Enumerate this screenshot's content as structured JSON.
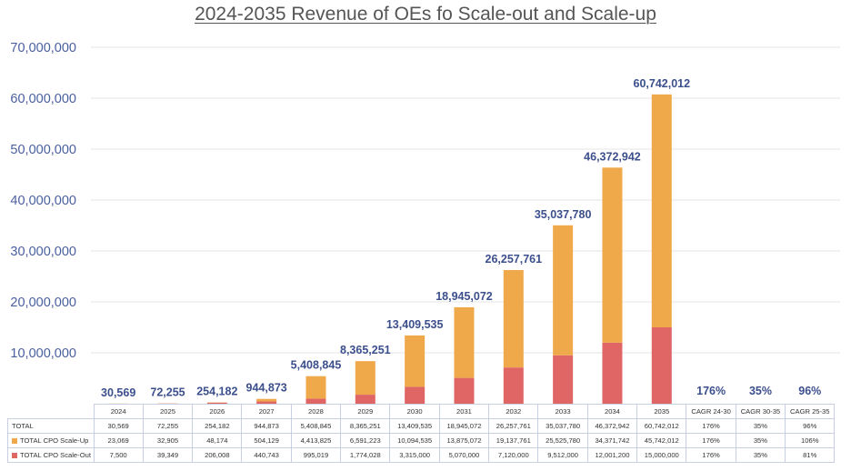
{
  "chart_data": {
    "type": "bar",
    "stacked": true,
    "title": "2024-2035 Revenue of OEs fo Scale-out and Scale-up",
    "categories": [
      "2024",
      "2025",
      "2026",
      "2027",
      "2028",
      "2029",
      "2030",
      "2031",
      "2032",
      "2033",
      "2034",
      "2035"
    ],
    "extra_columns": [
      "CAGR 24-30",
      "CAGR 30-35",
      "CAGR 25-35"
    ],
    "ylim": [
      0,
      70000000
    ],
    "yticks": [
      "-",
      "10,000,000",
      "20,000,000",
      "30,000,000",
      "40,000,000",
      "50,000,000",
      "60,000,000",
      "70,000,000"
    ],
    "grid": true,
    "series": [
      {
        "name": "TOTAL CPO Scale-Out",
        "color": "#e06666",
        "values": [
          7500,
          39349,
          206008,
          440743,
          995019,
          1774028,
          3315000,
          5070000,
          7120000,
          9512000,
          12001200,
          15000000
        ]
      },
      {
        "name": "TOTAL CPO Scale-Up",
        "color": "#efa94a",
        "values": [
          23069,
          32905,
          48174,
          504129,
          4413825,
          6591223,
          10094535,
          13875072,
          19137761,
          25525780,
          34371742,
          45742012
        ]
      }
    ],
    "data_labels": [
      "30,569",
      "72,255",
      "254,182",
      "944,873",
      "5,408,845",
      "8,365,251",
      "13,409,535",
      "18,945,072",
      "26,257,761",
      "35,037,780",
      "46,372,942",
      "60,742,012"
    ],
    "cagr_labels": [
      "176%",
      "35%",
      "96%"
    ],
    "table": {
      "header": [
        "2024",
        "2025",
        "2026",
        "2027",
        "2028",
        "2029",
        "2030",
        "2031",
        "2032",
        "2033",
        "2034",
        "2035",
        "CAGR 24-30",
        "CAGR 30-35",
        "CAGR 25-35"
      ],
      "rows": [
        {
          "label": "TOTAL",
          "swatch": "",
          "cells": [
            "30,569",
            "72,255",
            "254,182",
            "944,873",
            "5,408,845",
            "8,365,251",
            "13,409,535",
            "18,945,072",
            "26,257,761",
            "35,037,780",
            "46,372,942",
            "60,742,012",
            "176%",
            "35%",
            "96%"
          ]
        },
        {
          "label": "TOTAL CPO Scale-Up",
          "swatch": "#efa94a",
          "cells": [
            "23,069",
            "32,905",
            "48,174",
            "504,129",
            "4,413,825",
            "6,591,223",
            "10,094,535",
            "13,875,072",
            "19,137,761",
            "25,525,780",
            "34,371,742",
            "45,742,012",
            "176%",
            "35%",
            "106%"
          ]
        },
        {
          "label": "TOTAL CPO Scale-Out",
          "swatch": "#e06666",
          "cells": [
            "7,500",
            "39,349",
            "206,008",
            "440,743",
            "995,019",
            "1,774,028",
            "3,315,000",
            "5,070,000",
            "7,120,000",
            "9,512,000",
            "12,001,200",
            "15,000,000",
            "176%",
            "35%",
            "81%"
          ]
        }
      ]
    }
  }
}
